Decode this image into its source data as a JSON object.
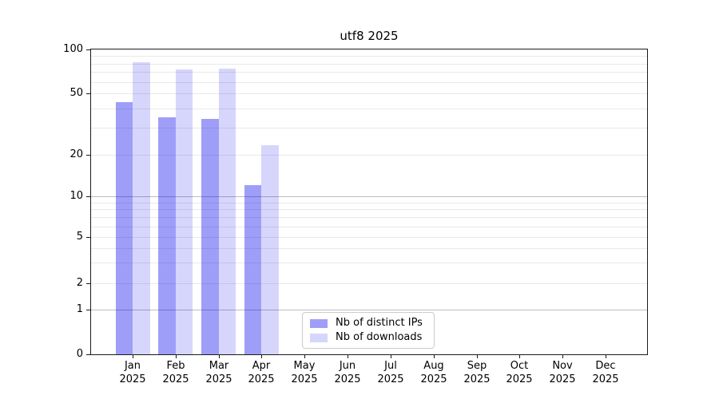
{
  "title": "utf8 2025",
  "chart_data": {
    "type": "bar",
    "title": "utf8 2025",
    "categories": [
      "Jan",
      "Feb",
      "Mar",
      "Apr",
      "May",
      "Jun",
      "Jul",
      "Aug",
      "Sep",
      "Oct",
      "Nov",
      "Dec"
    ],
    "year_label": "2025",
    "series": [
      {
        "name": "Nb of distinct IPs",
        "values": [
          44,
          35,
          34,
          12,
          0,
          0,
          0,
          0,
          0,
          0,
          0,
          0
        ],
        "color_hex": "#a3a3f2",
        "fill": "rgba(0,0,238,0.38)"
      },
      {
        "name": "Nb of downloads",
        "values": [
          82,
          73,
          74,
          23,
          0,
          0,
          0,
          0,
          0,
          0,
          0,
          0
        ],
        "color_hex": "#d9d9fa",
        "fill": "rgba(0,0,238,0.16)"
      }
    ],
    "xlabel": "",
    "ylabel": "",
    "ylim": [
      0,
      100
    ],
    "yscale": "log-like (0,1,2,5,10,20,50,100)",
    "y_ticks": [
      0,
      1,
      2,
      5,
      10,
      20,
      50,
      100
    ],
    "y_minor_gridlines": [
      2,
      3,
      4,
      5,
      6,
      7,
      8,
      9,
      20,
      30,
      40,
      50,
      60,
      70,
      80,
      90
    ],
    "y_major_gridlines": [
      1,
      10
    ],
    "grid": true,
    "legend_position": "lower center-left inside plot"
  },
  "legend": {
    "items": [
      {
        "label": "Nb of distinct IPs"
      },
      {
        "label": "Nb of downloads"
      }
    ]
  }
}
